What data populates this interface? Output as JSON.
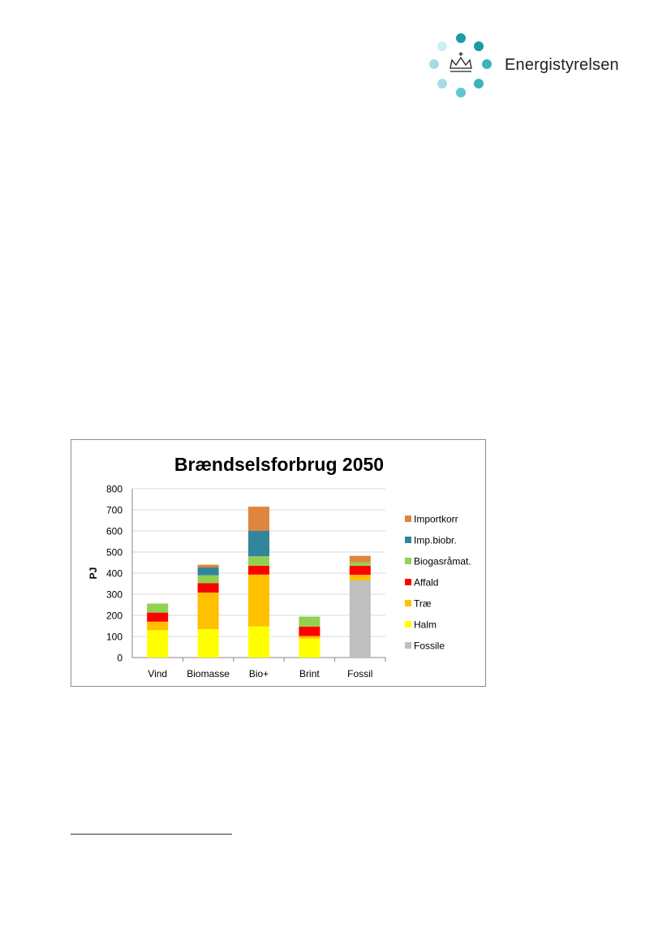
{
  "logo": {
    "text": "Energistyrelsen",
    "dot_colors": [
      "#1b9aa8",
      "#3db3bd",
      "#a6dde3",
      "#cdeef1"
    ],
    "icon": "crown-icon"
  },
  "chart_data": {
    "type": "bar",
    "stacked": true,
    "title": "Brændselsforbrug 2050",
    "xlabel": "",
    "ylabel": "PJ",
    "ylim": [
      0,
      800
    ],
    "yticks": [
      0,
      100,
      200,
      300,
      400,
      500,
      600,
      700,
      800
    ],
    "grid": true,
    "legend_position": "right",
    "categories": [
      "Vind",
      "Biomasse",
      "Bio+",
      "Brint",
      "Fossil"
    ],
    "series": [
      {
        "name": "Fossile",
        "color": "#bfbfbf",
        "values": [
          0,
          0,
          0,
          0,
          365
        ]
      },
      {
        "name": "Halm",
        "color": "#ffff00",
        "values": [
          130,
          135,
          148,
          90,
          0
        ]
      },
      {
        "name": "Træ",
        "color": "#ffc000",
        "values": [
          40,
          173,
          245,
          12,
          27
        ]
      },
      {
        "name": "Affald",
        "color": "#ff0000",
        "values": [
          43,
          45,
          42,
          45,
          43
        ]
      },
      {
        "name": "Biogasråmat.",
        "color": "#92d050",
        "values": [
          43,
          37,
          45,
          47,
          17
        ]
      },
      {
        "name": "Imp.biobr.",
        "color": "#31859c",
        "values": [
          0,
          37,
          120,
          0,
          0
        ]
      },
      {
        "name": "Importkorr",
        "color": "#e0853d",
        "values": [
          0,
          13,
          115,
          0,
          30
        ]
      }
    ],
    "legend_order": [
      "Importkorr",
      "Imp.biobr.",
      "Biogasråmat.",
      "Affald",
      "Træ",
      "Halm",
      "Fossile"
    ]
  }
}
